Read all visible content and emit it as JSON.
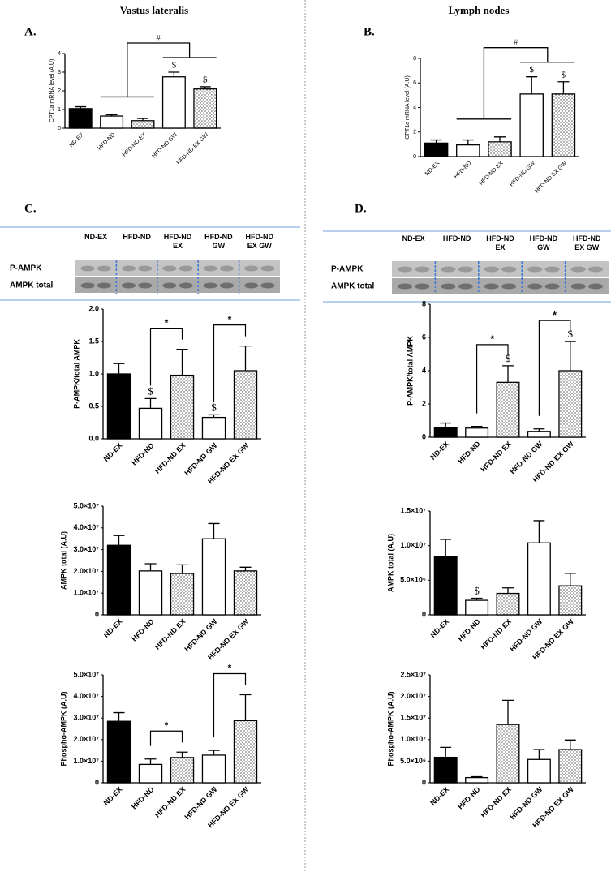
{
  "columns": [
    "Vastus lateralis",
    "Lymph nodes"
  ],
  "panel_labels": [
    "A.",
    "B.",
    "C.",
    "D."
  ],
  "blots": [
    {
      "lanes": [
        "ND-EX",
        "HFD-ND",
        "HFD-ND EX",
        "HFD-ND GW",
        "HFD-ND EX GW"
      ],
      "rows": [
        "P-AMPK",
        "AMPK total"
      ]
    },
    {
      "lanes": [
        "ND-EX",
        "HFD-ND",
        "HFD-ND EX",
        "HFD-ND GW",
        "HFD-ND EX GW"
      ],
      "rows": [
        "P-AMPK",
        "AMPK total"
      ]
    }
  ],
  "chart_data": [
    {
      "type": "bar",
      "ylabel": "CPT1a mRNA level (A.U)",
      "categories": [
        "ND-EX",
        "HFD-ND",
        "HFD-ND EX",
        "HFD-ND GW",
        "HFD-ND EX GW"
      ],
      "series": [
        {
          "values": [
            1.05,
            0.65,
            0.4,
            2.75,
            2.1
          ],
          "errors": [
            0.1,
            0.07,
            0.12,
            0.25,
            0.12
          ],
          "fills": [
            "black",
            "white",
            "dotted",
            "white",
            "dotted"
          ]
        }
      ],
      "ylim": [
        0,
        4
      ],
      "yticks": [
        0,
        1,
        2,
        3,
        4
      ],
      "annotations": [
        {
          "text": "$",
          "category": 3
        },
        {
          "text": "$",
          "category": 4
        }
      ],
      "group_brackets": [
        {
          "text": "#",
          "left": [
            1,
            2
          ],
          "right": [
            3,
            4
          ]
        }
      ]
    },
    {
      "type": "bar",
      "ylabel": "CPT1a mRNA level (A.U)",
      "categories": [
        "ND-EX",
        "HFD-ND",
        "HFD-ND EX",
        "HFD-ND GW",
        "HFD-ND EX GW"
      ],
      "series": [
        {
          "values": [
            1.1,
            0.95,
            1.2,
            5.1,
            5.1
          ],
          "errors": [
            0.25,
            0.4,
            0.4,
            1.4,
            1.0
          ],
          "fills": [
            "black",
            "white",
            "dotted",
            "white",
            "dotted"
          ]
        }
      ],
      "ylim": [
        0,
        8
      ],
      "yticks": [
        0,
        2,
        4,
        6,
        8
      ],
      "annotations": [
        {
          "text": "$",
          "category": 3
        },
        {
          "text": "$",
          "category": 4
        }
      ],
      "group_brackets": [
        {
          "text": "#",
          "left": [
            1,
            2
          ],
          "right": [
            3,
            4
          ]
        }
      ]
    },
    {
      "type": "bar",
      "ylabel": "P-AMPK/total AMPK",
      "categories": [
        "ND-EX",
        "HFD-ND",
        "HFD-ND EX",
        "HFD-ND GW",
        "HFD-ND EX GW"
      ],
      "series": [
        {
          "values": [
            1.0,
            0.47,
            0.98,
            0.33,
            1.05
          ],
          "errors": [
            0.16,
            0.15,
            0.4,
            0.04,
            0.38
          ],
          "fills": [
            "black",
            "white",
            "dotted",
            "white",
            "dotted"
          ]
        }
      ],
      "ylim": [
        0,
        2
      ],
      "yticks": [
        {
          "value": 0,
          "label": "0.0"
        },
        0.5,
        {
          "value": 1,
          "label": "1.0"
        },
        1.5,
        {
          "value": 2,
          "label": "2.0"
        }
      ],
      "annotations": [
        {
          "text": "$",
          "category": 1
        },
        {
          "text": "$",
          "category": 3
        }
      ],
      "brackets": [
        {
          "text": "*",
          "from": 1,
          "to": 2
        },
        {
          "text": "*",
          "from": 3,
          "to": 4
        }
      ]
    },
    {
      "type": "bar",
      "ylabel": "P-AMPK/total AMPK",
      "categories": [
        "ND-EX",
        "HFD-ND",
        "HFD-ND EX",
        "HFD-ND GW",
        "HFD-ND EX GW"
      ],
      "series": [
        {
          "values": [
            0.6,
            0.55,
            3.3,
            0.35,
            4.0
          ],
          "errors": [
            0.25,
            0.1,
            1.0,
            0.15,
            1.75
          ],
          "fills": [
            "black",
            "white",
            "dotted",
            "white",
            "dotted"
          ]
        }
      ],
      "ylim": [
        0,
        8
      ],
      "yticks": [
        0,
        2,
        4,
        6,
        8
      ],
      "annotations": [
        {
          "text": "$",
          "category": 2
        },
        {
          "text": "$",
          "category": 4
        }
      ],
      "brackets": [
        {
          "text": "*",
          "from": 1,
          "to": 2
        },
        {
          "text": "*",
          "from": 3,
          "to": 4
        }
      ]
    },
    {
      "type": "bar",
      "ylabel": "AMPK total (A.U)",
      "categories": [
        "ND-EX",
        "HFD-ND",
        "HFD-ND EX",
        "HFD-ND GW",
        "HFD-ND EX GW"
      ],
      "series": [
        {
          "values": [
            32000000,
            20200000,
            19000000,
            35000000,
            20200000
          ],
          "errors": [
            4500000,
            3300000,
            4000000,
            7000000,
            1700000
          ],
          "fills": [
            "black",
            "white",
            "dotted",
            "white",
            "dotted"
          ]
        }
      ],
      "ylim": [
        0,
        50000000
      ],
      "yticks": [
        0,
        {
          "value": 10000000,
          "label": "1.0×10⁷"
        },
        {
          "value": 20000000,
          "label": "2.0×10⁷"
        },
        {
          "value": 30000000,
          "label": "3.0×10⁷"
        },
        {
          "value": 40000000,
          "label": "4.0×10⁷"
        },
        {
          "value": 50000000,
          "label": "5.0×10⁷"
        }
      ]
    },
    {
      "type": "bar",
      "ylabel": "AMPK total (A.U)",
      "categories": [
        "ND-EX",
        "HFD-ND",
        "HFD-ND EX",
        "HFD-ND GW",
        "HFD-ND EX GW"
      ],
      "series": [
        {
          "values": [
            8400000,
            2100000,
            3100000,
            10400000,
            4200000
          ],
          "errors": [
            2500000,
            300000,
            800000,
            3200000,
            1800000
          ],
          "fills": [
            "black",
            "white",
            "dotted",
            "white",
            "dotted"
          ]
        }
      ],
      "ylim": [
        0,
        15000000
      ],
      "yticks": [
        0,
        {
          "value": 5000000,
          "label": "5.0×10⁶"
        },
        {
          "value": 10000000,
          "label": "1.0×10⁷"
        },
        {
          "value": 15000000,
          "label": "1.5×10⁷"
        }
      ],
      "annotations": [
        {
          "text": "$",
          "category": 1
        }
      ]
    },
    {
      "type": "bar",
      "ylabel": "Phospho-AMPK (A.U)",
      "categories": [
        "ND-EX",
        "HFD-ND",
        "HFD-ND EX",
        "HFD-ND GW",
        "HFD-ND EX GW"
      ],
      "series": [
        {
          "values": [
            28500000,
            8500000,
            11700000,
            12800000,
            28800000
          ],
          "errors": [
            4000000,
            2500000,
            2500000,
            2200000,
            12000000
          ],
          "fills": [
            "black",
            "white",
            "dotted",
            "white",
            "dotted"
          ]
        }
      ],
      "ylim": [
        0,
        50000000
      ],
      "yticks": [
        0,
        {
          "value": 10000000,
          "label": "1.0×10⁷"
        },
        {
          "value": 20000000,
          "label": "2.0×10⁷"
        },
        {
          "value": 30000000,
          "label": "3.0×10⁷"
        },
        {
          "value": 40000000,
          "label": "4.0×10⁷"
        },
        {
          "value": 50000000,
          "label": "5.0×10⁷"
        }
      ],
      "brackets": [
        {
          "text": "*",
          "from": 1,
          "to": 2
        },
        {
          "text": "*",
          "from": 3,
          "to": 4
        }
      ]
    },
    {
      "type": "bar",
      "ylabel": "Phospho-AMPK (A.U)",
      "categories": [
        "ND-EX",
        "HFD-ND",
        "HFD-ND EX",
        "HFD-ND GW",
        "HFD-ND EX GW"
      ],
      "series": [
        {
          "values": [
            5900000,
            1200000,
            13500000,
            5400000,
            7700000
          ],
          "errors": [
            2300000,
            200000,
            5600000,
            2300000,
            2200000
          ],
          "fills": [
            "black",
            "white",
            "dotted",
            "white",
            "dotted"
          ]
        }
      ],
      "ylim": [
        0,
        25000000
      ],
      "yticks": [
        0,
        {
          "value": 5000000,
          "label": "5.0×10⁶"
        },
        {
          "value": 10000000,
          "label": "1.0×10⁷"
        },
        {
          "value": 15000000,
          "label": "1.5×10⁷"
        },
        {
          "value": 20000000,
          "label": "2.0×10⁷"
        },
        {
          "value": 25000000,
          "label": "2.5×10⁷"
        }
      ]
    }
  ]
}
